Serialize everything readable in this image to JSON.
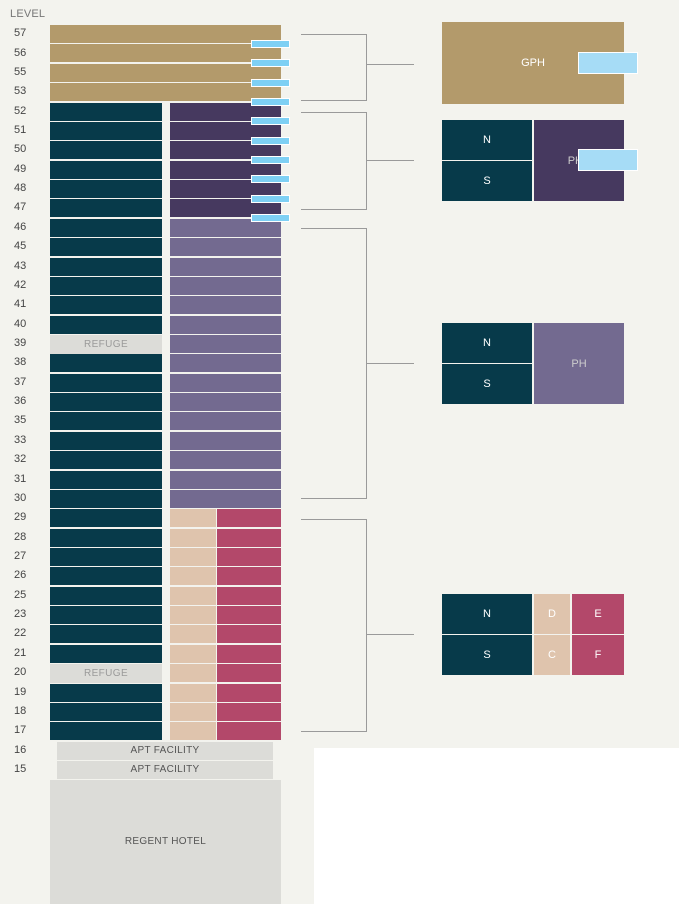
{
  "header": {
    "level_title": "LEVEL"
  },
  "levels": [
    "57",
    "56",
    "55",
    "53",
    "52",
    "51",
    "50",
    "49",
    "48",
    "47",
    "46",
    "45",
    "43",
    "42",
    "41",
    "40",
    "39",
    "38",
    "37",
    "36",
    "35",
    "33",
    "32",
    "31",
    "30",
    "29",
    "28",
    "27",
    "26",
    "25",
    "23",
    "22",
    "21",
    "20",
    "19",
    "18",
    "17",
    "16",
    "15"
  ],
  "refuge_label": "REFUGE",
  "facility_label": "APT FACILITY",
  "hotel_label": "REGENT HOTEL",
  "colors": {
    "gph": "#b39a6b",
    "north_south": "#073a4a",
    "php": "#46395f",
    "ph": "#736a90",
    "unit_d_c": "#dfc4ad",
    "unit_e_f": "#b3486a",
    "balcony": "#7ed0f4",
    "neutral": "#dcdcd8"
  },
  "legend": {
    "gph": {
      "label": "GPH"
    },
    "php": {
      "n": "N",
      "s": "S",
      "label": "PHP"
    },
    "ph": {
      "n": "N",
      "s": "S",
      "label": "PH"
    },
    "typical": {
      "n": "N",
      "s": "S",
      "d": "D",
      "e": "E",
      "c": "C",
      "f": "F"
    }
  }
}
